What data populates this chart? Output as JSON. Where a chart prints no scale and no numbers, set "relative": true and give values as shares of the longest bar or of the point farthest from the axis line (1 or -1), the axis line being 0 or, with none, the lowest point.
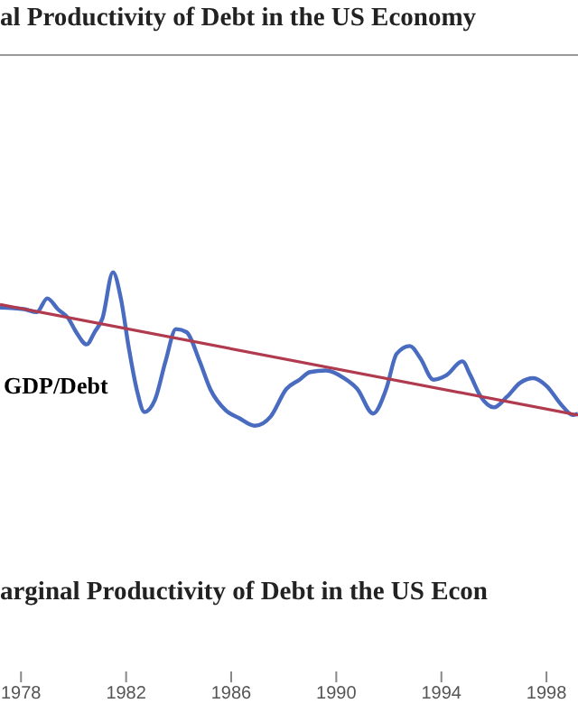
{
  "chart_data": {
    "type": "line",
    "title": "al Productivity of Debt in the US Economy",
    "ylabel": "GDP/Debt",
    "annotations": [
      "arginal Productivity of Debt in the US Econ"
    ],
    "relative": true,
    "xlim": [
      1977.2,
      1999.2
    ],
    "xticks": [
      1978,
      1982,
      1986,
      1990,
      1994,
      1998
    ],
    "grid": false,
    "legend": false,
    "marker": "none",
    "line_style": "solid",
    "series": [
      {
        "color": "#4a6cc0",
        "x": [
          1977.2,
          1978.1,
          1978.6,
          1979.0,
          1979.4,
          1979.8,
          1980.1,
          1980.5,
          1980.8,
          1981.1,
          1981.5,
          1981.8,
          1982.1,
          1982.4,
          1982.7,
          1983.1,
          1983.5,
          1983.9,
          1984.3,
          1984.8,
          1985.2,
          1985.8,
          1986.3,
          1986.9,
          1987.5,
          1988.1,
          1988.6,
          1989.0,
          1989.6,
          1990.3,
          1990.8,
          1991.4,
          1991.9,
          1992.3,
          1992.8,
          1993.2,
          1993.7,
          1994.2,
          1994.8,
          1995.1,
          1995.5,
          1996.0,
          1996.5,
          1997.0,
          1997.5,
          1998.0,
          1998.6,
          1999.0,
          1999.2
        ],
        "values": [
          0.77,
          0.76,
          0.74,
          0.83,
          0.76,
          0.7,
          0.61,
          0.53,
          0.61,
          0.7,
          1,
          0.83,
          0.51,
          0.24,
          0.09,
          0.17,
          0.42,
          0.63,
          0.61,
          0.42,
          0.24,
          0.1,
          0.05,
          0,
          0.06,
          0.24,
          0.3,
          0.35,
          0.36,
          0.31,
          0.24,
          0.08,
          0.24,
          0.47,
          0.52,
          0.44,
          0.3,
          0.33,
          0.42,
          0.33,
          0.19,
          0.12,
          0.19,
          0.28,
          0.31,
          0.26,
          0.13,
          0.07,
          0.08
        ]
      },
      {
        "type": "line",
        "color": "#b03a4e",
        "x": [
          1977.2,
          1999.2
        ],
        "values": [
          0.79,
          0.07
        ]
      }
    ]
  }
}
